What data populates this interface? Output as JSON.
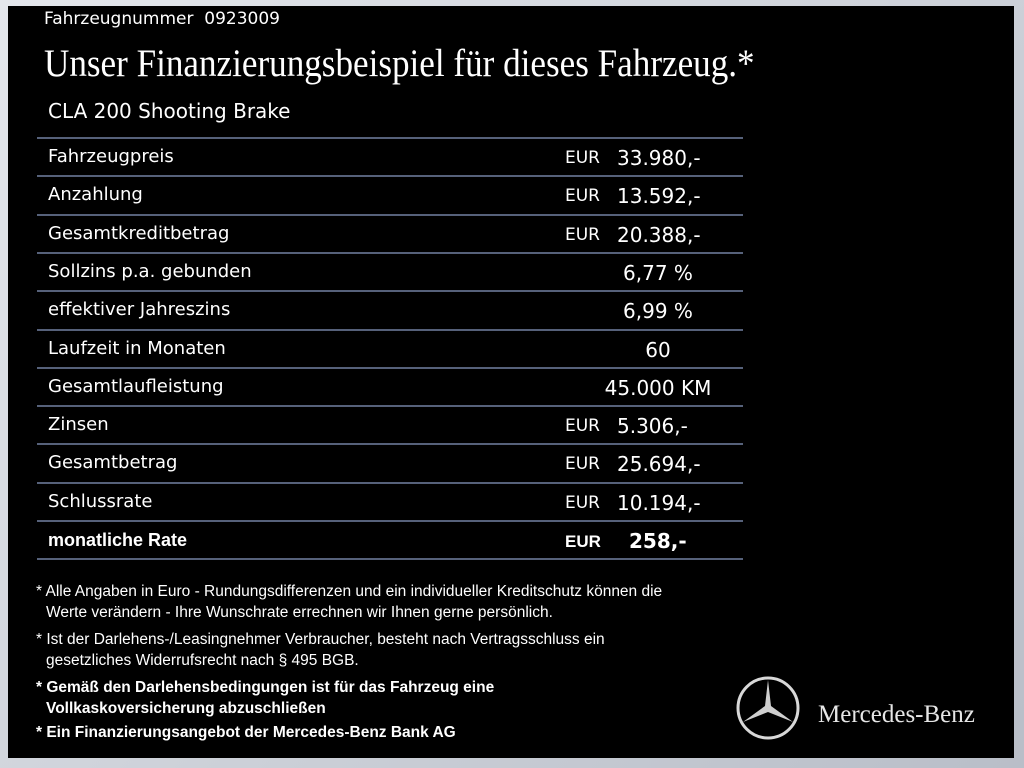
{
  "header": {
    "vehicle_number": "Fahrzeugnummer  0923009",
    "title": "Unser Finanzierungsbeispiel für dieses Fahrzeug.*",
    "model": "CLA 200 Shooting Brake"
  },
  "table": {
    "rows": [
      {
        "label": "Fahrzeugpreis",
        "currency": "EUR",
        "amount": "33.980,-"
      },
      {
        "label": "Anzahlung",
        "currency": "EUR",
        "amount": "13.592,-"
      },
      {
        "label": "Gesamtkreditbetrag",
        "currency": "EUR",
        "amount": "20.388,-"
      },
      {
        "label": "Sollzins p.a. gebunden",
        "amount": "6,77 %"
      },
      {
        "label": "effektiver Jahreszins",
        "amount": "6,99 %"
      },
      {
        "label": "Laufzeit in Monaten",
        "amount": "60"
      },
      {
        "label": "Gesamtlaufleistung",
        "amount": "45.000 KM"
      },
      {
        "label": "Zinsen",
        "currency": "EUR",
        "amount": "5.306,-"
      },
      {
        "label": "Gesamtbetrag",
        "currency": "EUR",
        "amount": "25.694,-"
      },
      {
        "label": "Schlussrate",
        "currency": "EUR",
        "amount": "10.194,-"
      },
      {
        "label": "monatliche Rate",
        "currency": "EUR",
        "amount": "258,-"
      }
    ]
  },
  "footnotes": [
    {
      "lines": [
        "* Alle Angaben in Euro - Rundungsdifferenzen und ein individueller Kreditschutz können die",
        "Werte verändern - Ihre Wunschrate errechnen wir Ihnen gerne persönlich."
      ]
    },
    {
      "lines": [
        "* Ist der Darlehens-/Leasingnehmer Verbraucher, besteht nach Vertragsschluss ein",
        "gesetzliches Widerrufsrecht nach § 495 BGB."
      ]
    },
    {
      "lines": [
        "* Gemäß den Darlehensbedingungen ist für das Fahrzeug eine",
        "Vollkaskoversicherung abzuschließen"
      ]
    },
    {
      "lines": [
        "* Ein Finanzierungsangebot der Mercedes-Benz Bank AG"
      ]
    }
  ],
  "brand": {
    "name": "Mercedes-Benz"
  }
}
